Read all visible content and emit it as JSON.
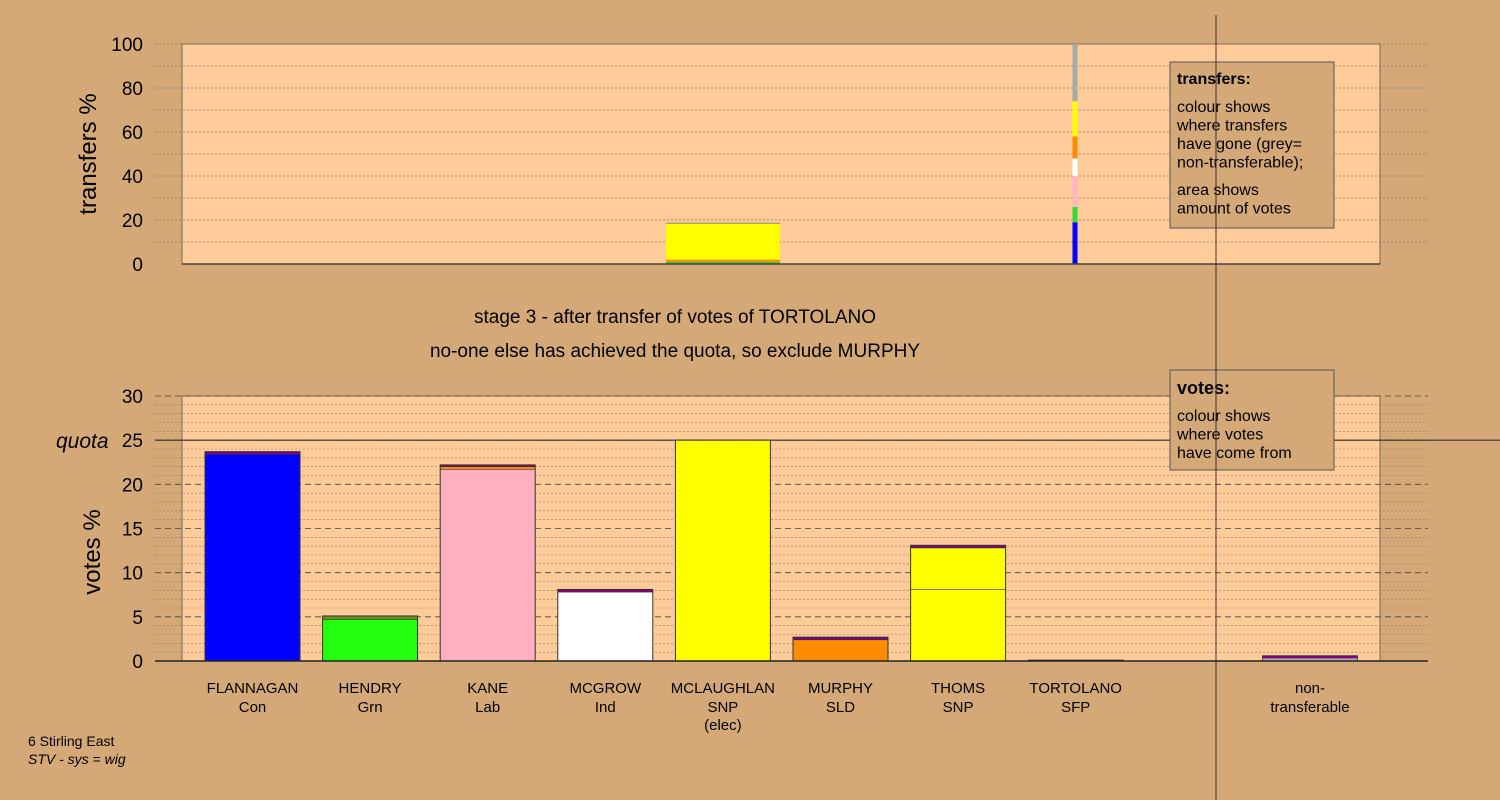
{
  "chart_data": [
    {
      "type": "bar",
      "name": "transfers",
      "ylabel": "transfers %",
      "ylim": [
        0,
        100
      ],
      "yticks": [
        0,
        20,
        40,
        60,
        80,
        100
      ],
      "bars": [
        {
          "category": "MCLAUGHLAN",
          "segments": [
            {
              "value": 1.0,
              "color": "#33cc33"
            },
            {
              "value": 1.0,
              "color": "#ff8c00"
            },
            {
              "value": 16.5,
              "color": "#ffff00"
            }
          ]
        }
      ],
      "key_strip": [
        {
          "color": "#0000ff",
          "value": 19
        },
        {
          "color": "#33dd33",
          "value": 7
        },
        {
          "color": "#ffb6c1",
          "value": 14
        },
        {
          "color": "#ffffff",
          "value": 8
        },
        {
          "color": "#ff8c00",
          "value": 10
        },
        {
          "color": "#ffff00",
          "value": 16
        },
        {
          "color": "#a9a9a9",
          "value": 26
        }
      ],
      "legend": {
        "title": "transfers:",
        "lines1": [
          "colour shows",
          "where transfers",
          "have gone (grey=",
          "non-transferable);"
        ],
        "lines2": [
          "area shows",
          "amount of votes"
        ]
      }
    },
    {
      "type": "bar",
      "name": "votes",
      "ylabel": "votes %",
      "ylim": [
        0,
        30
      ],
      "yticks": [
        0,
        5,
        10,
        15,
        20,
        25,
        30
      ],
      "quota": 25,
      "quota_label": "quota",
      "categories": [
        {
          "name": "FLANNAGAN",
          "party": "Con",
          "extra": "",
          "segments": [
            {
              "value": 23.4,
              "color": "#0000ff"
            },
            {
              "value": 0.3,
              "color": "#800080"
            }
          ]
        },
        {
          "name": "HENDRY",
          "party": "Grn",
          "extra": "",
          "segments": [
            {
              "value": 4.7,
              "color": "#22ff11"
            },
            {
              "value": 0.4,
              "color": "#6b8e23"
            }
          ]
        },
        {
          "name": "KANE",
          "party": "Lab",
          "extra": "",
          "segments": [
            {
              "value": 21.7,
              "color": "#ffb0c0"
            },
            {
              "value": 0.3,
              "color": "#ff8c00"
            },
            {
              "value": 0.2,
              "color": "#800080"
            }
          ]
        },
        {
          "name": "MCGROW",
          "party": "Ind",
          "extra": "",
          "segments": [
            {
              "value": 7.8,
              "color": "#ffffff"
            },
            {
              "value": 0.3,
              "color": "#800080"
            }
          ]
        },
        {
          "name": "MCLAUGHLAN",
          "party": "SNP",
          "extra": "(elec)",
          "segments": [
            {
              "value": 25.0,
              "color": "#ffff00"
            }
          ]
        },
        {
          "name": "MURPHY",
          "party": "SLD",
          "extra": "",
          "segments": [
            {
              "value": 2.4,
              "color": "#ff8c00"
            },
            {
              "value": 0.3,
              "color": "#800080"
            }
          ]
        },
        {
          "name": "THOMS",
          "party": "SNP",
          "extra": "",
          "segments": [
            {
              "value": 8.1,
              "color": "#ffff00"
            },
            {
              "value": 4.7,
              "color": "#ffff00"
            },
            {
              "value": 0.3,
              "color": "#800080"
            }
          ]
        },
        {
          "name": "TORTOLANO",
          "party": "SFP",
          "extra": "",
          "segments": [
            {
              "value": 0.1,
              "color": "#800080"
            }
          ]
        }
      ],
      "nontransferable": {
        "line1": "non-",
        "line2": "transferable",
        "segments": [
          {
            "value": 0.3,
            "color": "#a9a9a9"
          },
          {
            "value": 0.3,
            "color": "#800080"
          }
        ]
      },
      "legend": {
        "title": "votes:",
        "lines": [
          "colour shows",
          "where votes",
          "have come from"
        ]
      }
    }
  ],
  "stage_title": "stage 3 - after transfer of votes of TORTOLANO",
  "stage_subtitle": "no-one else has achieved the quota, so exclude MURPHY",
  "footer": {
    "line1": "6 Stirling East",
    "line2": "STV - sys = wig"
  },
  "colors": {
    "background": "#d4a977",
    "plot_area": "#ffcc99"
  }
}
